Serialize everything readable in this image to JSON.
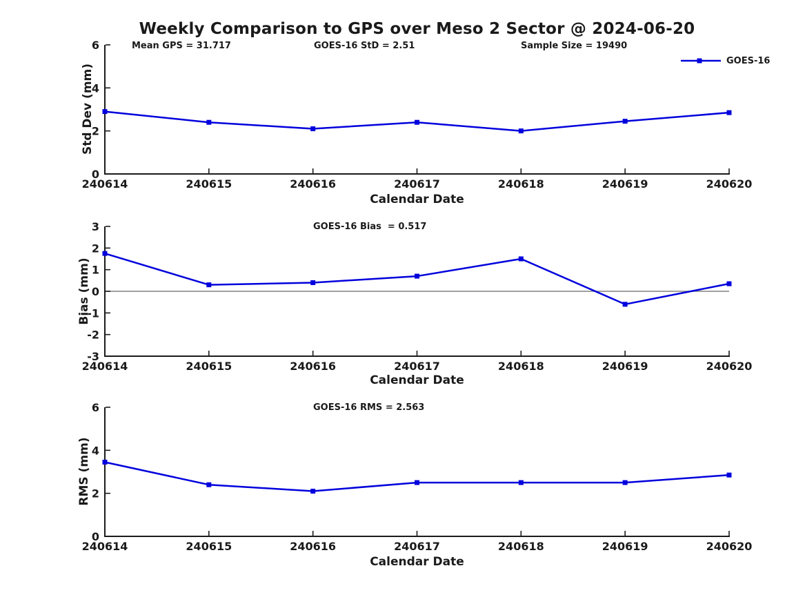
{
  "title": "Weekly Comparison to GPS over Meso 2 Sector @ 2024-06-20",
  "legend": {
    "label": "GOES-16"
  },
  "colors": {
    "series": "#0000dd",
    "axis": "#1a1a1a",
    "zero_line": "#808080",
    "text": "#1a1a1a",
    "background": "#ffffff"
  },
  "chart_data": [
    {
      "type": "line",
      "name": "std-dev-vs-date",
      "ylabel": "Std Dev (mm)",
      "xlabel": "Calendar Date",
      "annotations": [
        "Mean GPS = 31.717",
        "GOES-16 StD = 2.51",
        "Sample Size = 19490"
      ],
      "categories": [
        "240614",
        "240615",
        "240616",
        "240617",
        "240618",
        "240619",
        "240620"
      ],
      "ylim": [
        0,
        6
      ],
      "yticks": [
        0,
        2,
        4,
        6
      ],
      "grid": false,
      "legend_position": "top-right-outside",
      "series": [
        {
          "name": "GOES-16",
          "color": "#0000dd",
          "marker": "square",
          "values": [
            2.9,
            2.4,
            2.1,
            2.4,
            2.0,
            2.45,
            2.85
          ]
        }
      ]
    },
    {
      "type": "line",
      "name": "bias-vs-date",
      "ylabel": "Bias (mm)",
      "xlabel": "Calendar Date",
      "annotations": [
        "GOES-16 Bias  = 0.517"
      ],
      "categories": [
        "240614",
        "240615",
        "240616",
        "240617",
        "240618",
        "240619",
        "240620"
      ],
      "ylim": [
        -3,
        3
      ],
      "yticks": [
        -3,
        -2,
        -1,
        0,
        1,
        2,
        3
      ],
      "grid": false,
      "zero_line": true,
      "series": [
        {
          "name": "GOES-16",
          "color": "#0000dd",
          "marker": "square",
          "values": [
            1.75,
            0.3,
            0.4,
            0.7,
            1.5,
            -0.6,
            0.35
          ]
        }
      ]
    },
    {
      "type": "line",
      "name": "rms-vs-date",
      "ylabel": "RMS (mm)",
      "xlabel": "Calendar Date",
      "annotations": [
        "GOES-16 RMS = 2.563"
      ],
      "categories": [
        "240614",
        "240615",
        "240616",
        "240617",
        "240618",
        "240619",
        "240620"
      ],
      "ylim": [
        0,
        6
      ],
      "yticks": [
        0,
        2,
        4,
        6
      ],
      "grid": false,
      "series": [
        {
          "name": "GOES-16",
          "color": "#0000dd",
          "marker": "square",
          "values": [
            3.45,
            2.4,
            2.1,
            2.5,
            2.5,
            2.5,
            2.85
          ]
        }
      ]
    }
  ]
}
